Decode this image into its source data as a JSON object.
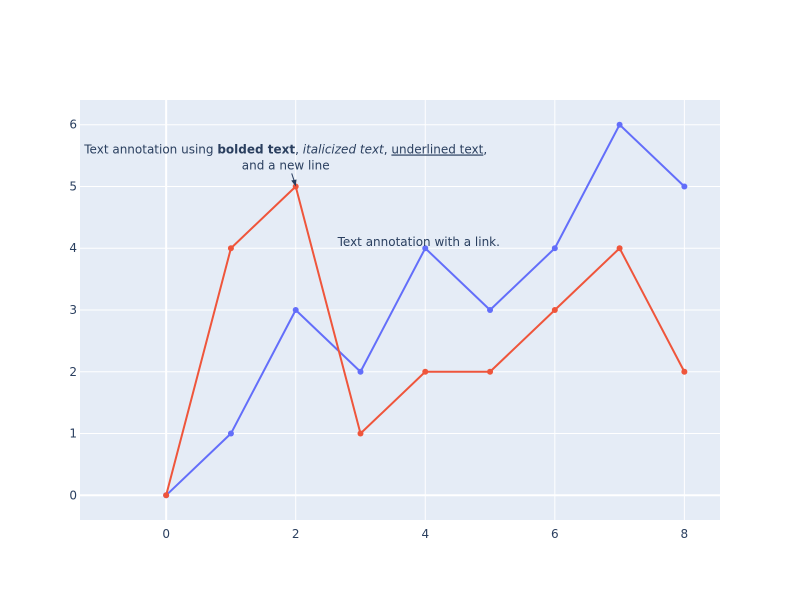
{
  "chart_data": {
    "type": "line",
    "title": "",
    "xlabel": "",
    "ylabel": "",
    "x": [
      0,
      1,
      2,
      3,
      4,
      5,
      6,
      7,
      8
    ],
    "xlim": [
      -1.33,
      8.55
    ],
    "ylim": [
      -0.4,
      6.4
    ],
    "x_ticks": [
      0,
      2,
      4,
      6,
      8
    ],
    "y_ticks": [
      0,
      1,
      2,
      3,
      4,
      5,
      6
    ],
    "grid": true,
    "legend": "none",
    "colors": {
      "plot_background": "#e5ecf6",
      "grid": "#ffffff",
      "text": "#2a3f5f"
    },
    "series": [
      {
        "color": "#636efa",
        "values": [
          0,
          1,
          3,
          2,
          4,
          3,
          4,
          6,
          5
        ]
      },
      {
        "color": "#ef553b",
        "values": [
          0,
          4,
          5,
          1,
          2,
          2,
          3,
          4,
          2
        ]
      }
    ],
    "annotations": [
      {
        "type": "arrow",
        "x": 2,
        "y": 5,
        "line1": [
          {
            "text": "Text annotation using ",
            "style": "normal"
          },
          {
            "text": "bolded text",
            "style": "bold"
          },
          {
            "text": ", ",
            "style": "normal"
          },
          {
            "text": "italicized text",
            "style": "italic"
          },
          {
            "text": ", ",
            "style": "normal"
          },
          {
            "text": "underlined text",
            "style": "underline"
          },
          {
            "text": ",",
            "style": "normal"
          }
        ],
        "line2": "and a new line"
      },
      {
        "type": "text",
        "x": 3.9,
        "y": 4.1,
        "text": "Text annotation with a link."
      }
    ]
  }
}
